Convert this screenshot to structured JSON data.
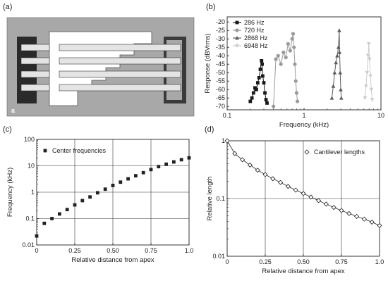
{
  "panels": {
    "a": {
      "label": "(a)",
      "inset_label": "a"
    },
    "b": {
      "label": "(b)"
    },
    "c": {
      "label": "(c)"
    },
    "d": {
      "label": "(d)"
    }
  },
  "colors": {
    "die_bg": "#a8a8a8",
    "electrode": "#2a2a2a",
    "beam": "#e4e4e4",
    "series_286": "#1a1a1a",
    "series_720": "#9a9a9a",
    "series_2868": "#5c5c5c",
    "series_6948": "#cccccc"
  },
  "chart_data": [
    {
      "id": "b",
      "type": "line",
      "xlabel": "Frequency (kHz)",
      "ylabel": "Response (dBVrms)",
      "xscale": "log",
      "xlim": [
        0.1,
        10
      ],
      "ylim": [
        -72,
        -17
      ],
      "xticks": [
        0.1,
        1,
        10
      ],
      "xtick_labels": [
        "0.1",
        "1",
        "10"
      ],
      "yticks": [
        -70,
        -65,
        -60,
        -55,
        -50,
        -45,
        -40,
        -35,
        -30,
        -25,
        -20
      ],
      "ytick_labels": [
        "-70",
        "-65",
        "-60",
        "-55",
        "-50",
        "-45",
        "-40",
        "-35",
        "-30",
        "-25",
        "-20"
      ],
      "legend": "top-left",
      "series": [
        {
          "name": "286 Hz",
          "marker": "square",
          "color": "#1a1a1a",
          "x": [
            0.2,
            0.21,
            0.22,
            0.23,
            0.24,
            0.25,
            0.26,
            0.27,
            0.28,
            0.285,
            0.29,
            0.3,
            0.31,
            0.32,
            0.33
          ],
          "y": [
            -67,
            -65,
            -62,
            -59,
            -60,
            -56,
            -53,
            -48,
            -43,
            -45,
            -52,
            -56,
            -62,
            -66,
            -68
          ]
        },
        {
          "name": "720 Hz",
          "marker": "circle",
          "color": "#9a9a9a",
          "x": [
            0.4,
            0.43,
            0.46,
            0.5,
            0.54,
            0.58,
            0.62,
            0.66,
            0.7,
            0.72,
            0.74,
            0.76,
            0.78,
            0.8,
            0.82
          ],
          "y": [
            -70,
            -42,
            -40,
            -45,
            -38,
            -41,
            -33,
            -37,
            -30,
            -27,
            -35,
            -45,
            -55,
            -62,
            -67
          ]
        },
        {
          "name": "2868 Hz",
          "marker": "triangle",
          "color": "#5c5c5c",
          "x": [
            2.3,
            2.4,
            2.5,
            2.6,
            2.7,
            2.8,
            2.87,
            2.9,
            2.95,
            3.0,
            3.05
          ],
          "y": [
            -65,
            -58,
            -50,
            -44,
            -40,
            -35,
            -25,
            -38,
            -50,
            -60,
            -65
          ]
        },
        {
          "name": "6948 Hz",
          "marker": "inverted-triangle",
          "color": "#cccccc",
          "x": [
            6.2,
            6.4,
            6.6,
            6.8,
            6.95,
            7.1,
            7.3,
            7.5,
            7.7
          ],
          "y": [
            -65,
            -58,
            -50,
            -40,
            -33,
            -42,
            -52,
            -60,
            -66
          ]
        }
      ]
    },
    {
      "id": "c",
      "type": "scatter",
      "xlabel": "Relative distance from apex",
      "ylabel": "Frequency (kHz)",
      "yscale": "log",
      "xlim": [
        0,
        1
      ],
      "ylim": [
        0.01,
        100
      ],
      "xticks": [
        0,
        0.25,
        0.5,
        0.75,
        1.0
      ],
      "xtick_labels": [
        "0",
        "0.25",
        "0.50",
        "0.75",
        "1.0"
      ],
      "yticks": [
        0.01,
        0.1,
        1,
        10,
        100
      ],
      "ytick_labels": [
        "0.01",
        "0.1",
        "1",
        "10",
        "100"
      ],
      "grid": true,
      "legend": "top-left",
      "series": [
        {
          "name": "Center frequencies",
          "marker": "square",
          "color": "#222222",
          "x": [
            0,
            0.05,
            0.1,
            0.15,
            0.2,
            0.25,
            0.3,
            0.35,
            0.4,
            0.45,
            0.5,
            0.55,
            0.6,
            0.65,
            0.7,
            0.75,
            0.8,
            0.85,
            0.9,
            0.95,
            1.0
          ],
          "y": [
            0.022,
            0.066,
            0.1,
            0.15,
            0.22,
            0.33,
            0.48,
            0.66,
            0.95,
            1.3,
            1.8,
            2.4,
            3.2,
            4.2,
            5.5,
            7.2,
            9.3,
            11.5,
            14,
            17,
            20
          ]
        }
      ]
    },
    {
      "id": "d",
      "type": "line",
      "xlabel": "Relative distance from apex",
      "ylabel": "Relative length",
      "yscale": "log",
      "xlim": [
        0,
        1
      ],
      "ylim": [
        0.01,
        1
      ],
      "xticks": [
        0,
        0.25,
        0.5,
        0.75,
        1.0
      ],
      "xtick_labels": [
        "0",
        "0.25",
        "0.50",
        "0.75",
        "1.0"
      ],
      "yticks": [
        0.01,
        0.1,
        1
      ],
      "ytick_labels": [
        "0.01",
        "0.1",
        "1"
      ],
      "grid": true,
      "legend": "top-right",
      "series": [
        {
          "name": "Cantilever lengths",
          "marker": "diamond-open",
          "color": "#222222",
          "x": [
            0,
            0.05,
            0.1,
            0.15,
            0.2,
            0.25,
            0.3,
            0.35,
            0.4,
            0.45,
            0.5,
            0.55,
            0.6,
            0.65,
            0.7,
            0.75,
            0.8,
            0.85,
            0.9,
            0.95,
            1.0
          ],
          "y": [
            1.0,
            0.6,
            0.47,
            0.38,
            0.31,
            0.26,
            0.22,
            0.19,
            0.162,
            0.14,
            0.122,
            0.106,
            0.092,
            0.08,
            0.07,
            0.062,
            0.055,
            0.049,
            0.044,
            0.039,
            0.034
          ]
        }
      ]
    }
  ]
}
